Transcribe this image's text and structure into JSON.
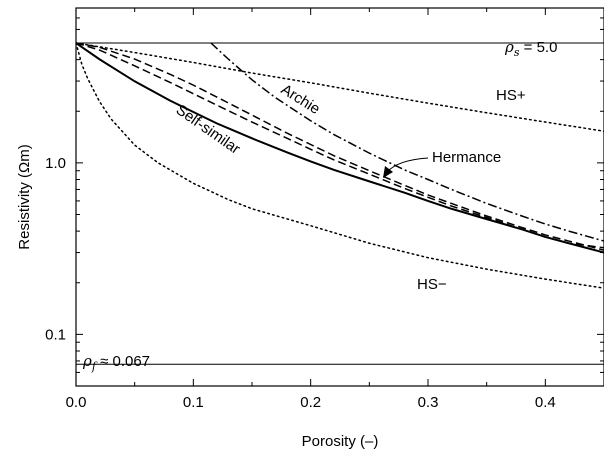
{
  "chart_data": {
    "type": "line",
    "xlabel": "Porosity (–)",
    "ylabel": "Resistivity (Ωm)",
    "xlim": [
      0,
      0.45
    ],
    "ylim": [
      0.05,
      8
    ],
    "yscale": "log",
    "grid": false,
    "legend": "none",
    "xticks": [
      {
        "value": 0.0,
        "label": "0.0"
      },
      {
        "value": 0.1,
        "label": "0.1"
      },
      {
        "value": 0.2,
        "label": "0.2"
      },
      {
        "value": 0.3,
        "label": "0.3"
      },
      {
        "value": 0.4,
        "label": "0.4"
      }
    ],
    "yticks": [
      {
        "value": 0.1,
        "label": "0.1"
      },
      {
        "value": 1.0,
        "label": "1.0"
      }
    ],
    "series": [
      {
        "name": "Self-similar",
        "style": "solid",
        "x": [
          0,
          0.02,
          0.05,
          0.08,
          0.1,
          0.12,
          0.15,
          0.18,
          0.2,
          0.22,
          0.25,
          0.28,
          0.3,
          0.32,
          0.35,
          0.38,
          0.4,
          0.42,
          0.45
        ],
        "y": [
          5.0,
          4.02,
          2.99,
          2.31,
          1.98,
          1.7,
          1.39,
          1.15,
          1.02,
          0.91,
          0.78,
          0.67,
          0.6,
          0.54,
          0.47,
          0.41,
          0.37,
          0.34,
          0.3
        ]
      },
      {
        "name": "Hermance",
        "style": "dashed",
        "x": [
          0,
          0.02,
          0.05,
          0.08,
          0.1,
          0.12,
          0.15,
          0.18,
          0.2,
          0.22,
          0.25,
          0.28,
          0.3,
          0.32,
          0.35,
          0.38,
          0.4,
          0.42,
          0.45
        ],
        "y": [
          5.0,
          4.72,
          4.03,
          3.29,
          2.84,
          2.42,
          1.9,
          1.49,
          1.28,
          1.1,
          0.9,
          0.74,
          0.65,
          0.58,
          0.49,
          0.42,
          0.38,
          0.35,
          0.31
        ]
      },
      {
        "name": "Archie",
        "style": "dashdot",
        "x": [
          0.115,
          0.13,
          0.15,
          0.17,
          0.2,
          0.22,
          0.25,
          0.28,
          0.3,
          0.32,
          0.35,
          0.38,
          0.4,
          0.42,
          0.45
        ],
        "y": [
          5.0,
          4.02,
          3.05,
          2.4,
          1.76,
          1.46,
          1.14,
          0.91,
          0.8,
          0.7,
          0.58,
          0.49,
          0.44,
          0.4,
          0.35
        ]
      },
      {
        "name": "",
        "style": "dashed",
        "x": [
          0,
          0.02,
          0.05,
          0.08,
          0.1,
          0.12,
          0.15,
          0.18,
          0.2,
          0.22,
          0.25,
          0.28,
          0.3,
          0.32,
          0.35,
          0.38,
          0.4,
          0.42,
          0.45
        ],
        "y": [
          5.0,
          4.55,
          3.68,
          2.95,
          2.53,
          2.17,
          1.73,
          1.39,
          1.2,
          1.04,
          0.86,
          0.71,
          0.63,
          0.56,
          0.48,
          0.41,
          0.37,
          0.34,
          0.32
        ]
      },
      {
        "name": "HS+",
        "style": "dotted",
        "x": [
          0,
          0.05,
          0.1,
          0.15,
          0.2,
          0.25,
          0.3,
          0.35,
          0.4,
          0.45
        ],
        "y": [
          5.0,
          4.4,
          3.85,
          3.34,
          2.93,
          2.55,
          2.23,
          1.96,
          1.73,
          1.53
        ]
      },
      {
        "name": "HS−",
        "style": "dotted",
        "x": [
          0,
          0.005,
          0.01,
          0.02,
          0.03,
          0.05,
          0.07,
          0.1,
          0.13,
          0.15,
          0.2,
          0.25,
          0.3,
          0.35,
          0.4,
          0.45
        ],
        "y": [
          5.0,
          3.75,
          3.1,
          2.28,
          1.8,
          1.27,
          1.0,
          0.76,
          0.61,
          0.54,
          0.43,
          0.34,
          0.28,
          0.24,
          0.21,
          0.186
        ]
      }
    ],
    "hlines": [
      {
        "y": 5.0,
        "style": "solid"
      },
      {
        "y": 0.067,
        "style": "solid"
      }
    ],
    "annotations": [
      {
        "id": "rho_s",
        "symbol": "ρ",
        "subscript": "s",
        "text": " = 5.0"
      },
      {
        "id": "rho_f",
        "symbol": "ρ",
        "subscript": "f",
        "text": " ≈ 0.067"
      },
      {
        "id": "hs_plus",
        "text": "HS+"
      },
      {
        "id": "hs_minus",
        "text": "HS−"
      },
      {
        "id": "archie",
        "text": "Archie"
      },
      {
        "id": "self_similar",
        "text": "Self-similar"
      },
      {
        "id": "hermance",
        "text": "Hermance"
      }
    ]
  }
}
